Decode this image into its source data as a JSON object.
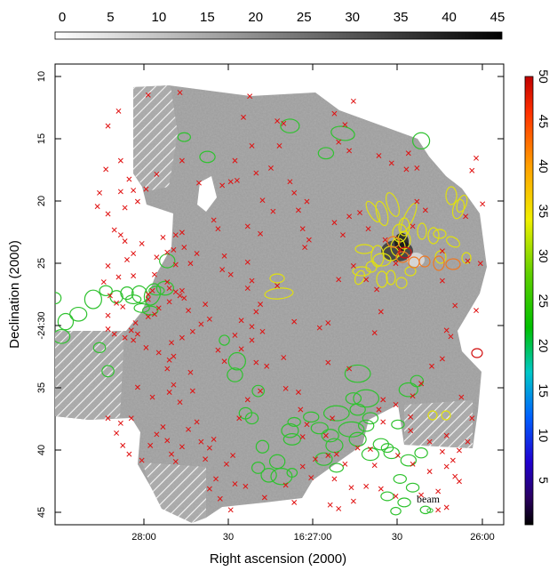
{
  "chart_data": {
    "type": "scatter",
    "xlabel": "Right ascension (2000)",
    "ylabel": "Declination (2000)",
    "x_ticks": [
      "28:00",
      "30",
      "16:27:00",
      "30",
      "26:00"
    ],
    "y_ticks": [
      "10",
      "15",
      "20",
      "25",
      "-24:30",
      "35",
      "40",
      "45"
    ],
    "top_colorbar": {
      "ticks": [
        "0",
        "5",
        "10",
        "15",
        "20",
        "25",
        "30",
        "35",
        "40",
        "45"
      ],
      "range": [
        0,
        45
      ],
      "colormap": "grayscale"
    },
    "right_colorbar": {
      "ticks": [
        "5",
        "10",
        "15",
        "20",
        "25",
        "30",
        "35",
        "40",
        "45",
        "50"
      ],
      "range": [
        0,
        50
      ],
      "colormap": "rainbow"
    },
    "beam_label": "beam",
    "colors": {
      "cross": "#e01010",
      "ellipse_green": "#2fc22f",
      "ellipse_yellow": "#e0e010",
      "ellipse_orange": "#f07820",
      "ellipse_red": "#d21010",
      "map_gray": "#9a9a9a"
    },
    "cross_markers": [
      [
        27.85,
        11.6
      ],
      [
        27.1,
        11.8
      ],
      [
        26.4,
        13.1
      ],
      [
        26.15,
        14.3
      ],
      [
        27.9,
        17.1
      ],
      [
        28.3,
        18.9
      ],
      [
        27.3,
        18.2
      ],
      [
        26.75,
        19.5
      ],
      [
        27.05,
        19.4
      ],
      [
        26.65,
        18.6
      ],
      [
        26.85,
        20.4
      ],
      [
        26.45,
        17.1
      ],
      [
        26.1,
        17.8
      ],
      [
        26.45,
        19.6
      ],
      [
        26.55,
        20.9
      ],
      [
        25.9,
        20.8
      ],
      [
        25.95,
        19.7
      ],
      [
        26.15,
        21.4
      ],
      [
        26.3,
        22.7
      ],
      [
        26.45,
        23.1
      ],
      [
        26.55,
        23.6
      ],
      [
        28.65,
        21.9
      ],
      [
        28.75,
        22.6
      ],
      [
        28.25,
        24.6
      ],
      [
        28.1,
        25.4
      ],
      [
        27.95,
        24.1
      ],
      [
        27.9,
        22.9
      ],
      [
        27.75,
        23.1
      ],
      [
        27.7,
        24.3
      ],
      [
        27.75,
        25.5
      ],
      [
        27.55,
        24.5
      ],
      [
        27.45,
        23.3
      ],
      [
        27.3,
        24.9
      ],
      [
        27.25,
        26.3
      ],
      [
        26.95,
        23.8
      ],
      [
        26.75,
        24.6
      ],
      [
        26.6,
        25.1
      ],
      [
        26.75,
        26.4
      ],
      [
        26.15,
        25.6
      ],
      [
        26.4,
        26.5
      ],
      [
        26.05,
        26.9
      ],
      [
        26.2,
        28.0
      ],
      [
        26.35,
        28.6
      ],
      [
        26.15,
        29.6
      ],
      [
        26.15,
        30.7
      ],
      [
        26.3,
        31.1
      ],
      [
        26.5,
        28.9
      ],
      [
        27.1,
        27.9
      ],
      [
        27.1,
        28.3
      ],
      [
        27.2,
        27.6
      ],
      [
        27.55,
        26.9
      ],
      [
        27.6,
        27.4
      ],
      [
        27.75,
        27.7
      ],
      [
        27.9,
        27.6
      ],
      [
        27.85,
        28.0
      ],
      [
        27.95,
        28.2
      ],
      [
        27.6,
        28.5
      ],
      [
        27.35,
        29.0
      ],
      [
        27.25,
        29.5
      ],
      [
        27.1,
        29.7
      ],
      [
        26.8,
        30.2
      ],
      [
        26.7,
        30.8
      ],
      [
        26.85,
        31.1
      ],
      [
        26.75,
        31.6
      ],
      [
        26.55,
        31.4
      ],
      [
        27.05,
        32.2
      ],
      [
        27.35,
        32.6
      ],
      [
        27.6,
        33.2
      ],
      [
        27.65,
        31.8
      ],
      [
        27.7,
        32.9
      ],
      [
        27.55,
        33.9
      ],
      [
        27.9,
        31.4
      ],
      [
        28.15,
        30.9
      ],
      [
        28.05,
        29.2
      ],
      [
        28.35,
        30.3
      ],
      [
        28.45,
        28.7
      ],
      [
        28.55,
        29.9
      ],
      [
        28.75,
        32.4
      ],
      [
        28.9,
        33.3
      ],
      [
        28.1,
        34.2
      ],
      [
        28.15,
        35.7
      ],
      [
        27.7,
        35.2
      ],
      [
        27.6,
        35.8
      ],
      [
        27.85,
        36.6
      ],
      [
        27.2,
        36.2
      ],
      [
        26.85,
        35.4
      ],
      [
        26.7,
        37.9
      ],
      [
        26.45,
        38.3
      ],
      [
        26.15,
        37.9
      ],
      [
        26.35,
        39.1
      ],
      [
        26.5,
        40.1
      ],
      [
        26.65,
        40.8
      ],
      [
        26.95,
        41.3
      ],
      [
        27.3,
        39.2
      ],
      [
        27.15,
        40.1
      ],
      [
        27.45,
        38.6
      ],
      [
        27.55,
        39.7
      ],
      [
        27.65,
        40.8
      ],
      [
        27.75,
        41.4
      ],
      [
        27.9,
        40.2
      ],
      [
        28.05,
        38.8
      ],
      [
        28.25,
        38.2
      ],
      [
        28.35,
        39.8
      ],
      [
        28.45,
        41.2
      ],
      [
        28.55,
        40.3
      ],
      [
        28.65,
        39.6
      ],
      [
        28.55,
        43.6
      ],
      [
        28.7,
        42.8
      ],
      [
        28.8,
        44.4
      ],
      [
        28.95,
        41.6
      ],
      [
        29.1,
        40.9
      ],
      [
        29.15,
        43.2
      ],
      [
        29.05,
        45.3
      ],
      [
        29.4,
        43.4
      ],
      [
        29.85,
        44.3
      ],
      [
        29.25,
        37.9
      ],
      [
        29.45,
        36.4
      ],
      [
        29.75,
        35.7
      ],
      [
        29.9,
        33.7
      ],
      [
        29.65,
        33.4
      ],
      [
        29.3,
        32.3
      ],
      [
        29.55,
        31.6
      ],
      [
        29.8,
        30.9
      ],
      [
        29.15,
        31.2
      ],
      [
        29.3,
        30.0
      ],
      [
        29.55,
        30.5
      ],
      [
        29.65,
        29.3
      ],
      [
        29.45,
        27.4
      ],
      [
        29.05,
        26.3
      ],
      [
        28.85,
        25.9
      ],
      [
        28.9,
        24.8
      ],
      [
        29.45,
        25.3
      ],
      [
        29.55,
        26.8
      ],
      [
        29.75,
        28.7
      ],
      [
        30.15,
        27.2
      ],
      [
        30.3,
        33.0
      ],
      [
        30.55,
        30.1
      ],
      [
        30.7,
        37.2
      ],
      [
        30.75,
        39.4
      ],
      [
        30.85,
        38.4
      ],
      [
        30.65,
        35.8
      ],
      [
        30.35,
        35.5
      ],
      [
        31.45,
        37.9
      ],
      [
        31.3,
        39.3
      ],
      [
        31.35,
        40.9
      ],
      [
        31.5,
        42.8
      ],
      [
        31.05,
        41.2
      ],
      [
        30.75,
        41.8
      ],
      [
        30.95,
        42.7
      ],
      [
        31.4,
        44.9
      ],
      [
        31.9,
        43.5
      ],
      [
        31.75,
        41.6
      ],
      [
        32.45,
        41.7
      ],
      [
        32.35,
        40.4
      ],
      [
        31.15,
        30.6
      ],
      [
        31.35,
        33.4
      ],
      [
        31.35,
        30.2
      ],
      [
        30.55,
        44.7
      ],
      [
        30.35,
        43.3
      ],
      [
        32.55,
        37.2
      ],
      [
        32.65,
        36.4
      ],
      [
        32.65,
        38.2
      ],
      [
        32.95,
        36.8
      ],
      [
        32.95,
        25.4
      ],
      [
        32.7,
        23.5
      ],
      [
        32.45,
        31.0
      ],
      [
        31.85,
        33.9
      ],
      [
        32.6,
        29.3
      ],
      [
        32.5,
        27.5
      ],
      [
        32.25,
        26.7
      ],
      [
        31.95,
        25.6
      ],
      [
        31.6,
        26.7
      ],
      [
        31.5,
        22.1
      ],
      [
        31.85,
        21.6
      ],
      [
        32.3,
        22.6
      ],
      [
        32.1,
        21.3
      ],
      [
        31.7,
        23.1
      ],
      [
        30.8,
        24.1
      ],
      [
        30.9,
        23.5
      ],
      [
        30.75,
        22.6
      ],
      [
        30.65,
        21.1
      ],
      [
        30.85,
        20.4
      ],
      [
        30.55,
        19.7
      ],
      [
        30.45,
        18.8
      ],
      [
        30.05,
        21.2
      ],
      [
        29.45,
        22.4
      ],
      [
        29.75,
        23.0
      ],
      [
        28.85,
        19.1
      ],
      [
        29.5,
        11.9
      ],
      [
        29.35,
        13.6
      ],
      [
        29.55,
        15.9
      ],
      [
        29.15,
        17.1
      ],
      [
        29.05,
        18.8
      ],
      [
        29.65,
        18.1
      ],
      [
        29.2,
        18.7
      ],
      [
        29.8,
        20.3
      ],
      [
        30.0,
        17.7
      ],
      [
        30.2,
        15.9
      ],
      [
        30.3,
        14.1
      ],
      [
        30.15,
        13.9
      ],
      [
        31.95,
        12.3
      ],
      [
        31.5,
        13.3
      ],
      [
        31.75,
        14.2
      ],
      [
        31.6,
        15.6
      ],
      [
        31.85,
        16.3
      ],
      [
        32.55,
        16.7
      ],
      [
        32.85,
        17.3
      ],
      [
        33.25,
        16.5
      ],
      [
        33.2,
        17.8
      ],
      [
        33.45,
        17.7
      ],
      [
        33.35,
        22.4
      ],
      [
        33.05,
        24.3
      ],
      [
        33.45,
        20.4
      ],
      [
        33.65,
        21.1
      ],
      [
        34.85,
        16.9
      ],
      [
        34.75,
        17.9
      ],
      [
        35.0,
        20.6
      ],
      [
        34.6,
        21.6
      ],
      [
        34.05,
        24.4
      ],
      [
        34.65,
        25.2
      ],
      [
        34.95,
        25.4
      ],
      [
        34.05,
        26.8
      ],
      [
        34.85,
        29.2
      ],
      [
        34.35,
        28.8
      ],
      [
        34.15,
        30.8
      ],
      [
        34.25,
        31.3
      ],
      [
        34.05,
        33.1
      ],
      [
        33.8,
        33.7
      ],
      [
        33.55,
        35.1
      ],
      [
        33.35,
        36.1
      ],
      [
        33.3,
        37.8
      ],
      [
        33.3,
        38.9
      ],
      [
        34.5,
        36.2
      ],
      [
        34.75,
        37.9
      ],
      [
        34.65,
        39.8
      ],
      [
        34.45,
        40.5
      ],
      [
        34.15,
        41.8
      ],
      [
        34.35,
        42.6
      ],
      [
        34.45,
        43.0
      ],
      [
        34.3,
        41.3
      ],
      [
        34.05,
        40.6
      ],
      [
        34.15,
        39.3
      ],
      [
        33.75,
        39.8
      ],
      [
        33.75,
        42.2
      ],
      [
        33.95,
        43.8
      ],
      [
        33.95,
        45.3
      ],
      [
        34.15,
        45.1
      ],
      [
        33.55,
        44.1
      ],
      [
        32.95,
        44.2
      ],
      [
        32.6,
        43.6
      ],
      [
        32.25,
        43.4
      ],
      [
        31.95,
        44.6
      ],
      [
        31.6,
        45.2
      ],
      [
        32.05,
        40.3
      ],
      [
        31.55,
        40.8
      ],
      [
        33.0,
        40.9
      ],
      [
        33.35,
        41.6
      ]
    ],
    "green_ellipses": [
      [
        31.7,
        14.9,
        0.28,
        0.55,
        10
      ],
      [
        31.3,
        16.5,
        0.18,
        0.45,
        0
      ],
      [
        30.45,
        14.3,
        0.22,
        0.55,
        0
      ],
      [
        33.55,
        15.5,
        0.2,
        0.65,
        0
      ],
      [
        28.5,
        16.8,
        0.18,
        0.45,
        0
      ],
      [
        27.95,
        15.2,
        0.15,
        0.35,
        0
      ],
      [
        27.55,
        25.2,
        0.18,
        0.55,
        0
      ],
      [
        27.2,
        27.9,
        0.18,
        0.9,
        20
      ],
      [
        27.5,
        27.4,
        0.2,
        0.55,
        0
      ],
      [
        26.9,
        27.9,
        0.18,
        0.7,
        -20
      ],
      [
        26.6,
        27.8,
        0.15,
        0.5,
        0
      ],
      [
        26.35,
        28.1,
        0.15,
        0.5,
        0
      ],
      [
        26.1,
        27.6,
        0.15,
        0.4,
        0
      ],
      [
        25.8,
        28.3,
        0.2,
        0.75,
        0
      ],
      [
        25.45,
        29.5,
        0.2,
        0.55,
        0
      ],
      [
        25.15,
        30.1,
        0.18,
        0.65,
        0
      ],
      [
        25.05,
        31.3,
        0.2,
        0.55,
        0
      ],
      [
        24.9,
        28.2,
        0.14,
        0.45,
        0
      ],
      [
        28.9,
        31.6,
        0.12,
        0.4,
        0
      ],
      [
        29.2,
        33.3,
        0.2,
        0.7,
        0
      ],
      [
        29.15,
        34.4,
        0.18,
        0.55,
        0
      ],
      [
        29.7,
        35.7,
        0.14,
        0.45,
        0
      ],
      [
        29.4,
        37.5,
        0.15,
        0.45,
        0
      ],
      [
        29.55,
        37.9,
        0.15,
        0.45,
        0
      ],
      [
        29.8,
        40.2,
        0.15,
        0.5,
        0
      ],
      [
        29.7,
        41.9,
        0.15,
        0.45,
        0
      ],
      [
        29.95,
        42.5,
        0.18,
        0.55,
        0
      ],
      [
        30.15,
        41.4,
        0.18,
        0.55,
        0
      ],
      [
        30.25,
        42.6,
        0.25,
        0.65,
        0
      ],
      [
        30.5,
        42.3,
        0.12,
        0.35,
        0
      ],
      [
        27.3,
        27.6,
        0.18,
        0.35,
        0
      ],
      [
        26.75,
        28.3,
        0.18,
        0.35,
        0
      ],
      [
        26.95,
        29.0,
        0.18,
        0.35,
        0
      ],
      [
        27.15,
        29.2,
        0.18,
        0.35,
        0
      ],
      [
        26.15,
        34.1,
        0.14,
        0.45,
        0
      ],
      [
        25.95,
        32.2,
        0.14,
        0.4,
        0
      ],
      [
        32.05,
        34.3,
        0.3,
        0.7,
        0
      ],
      [
        32.25,
        36.3,
        0.3,
        0.7,
        0
      ],
      [
        32.35,
        37.9,
        0.18,
        0.45,
        0
      ],
      [
        32.05,
        39.6,
        0.2,
        0.55,
        0
      ],
      [
        32.35,
        40.8,
        0.2,
        0.5,
        0
      ],
      [
        32.75,
        40.3,
        0.14,
        0.35,
        0
      ],
      [
        31.5,
        40.1,
        0.2,
        0.55,
        0
      ],
      [
        31.25,
        41.2,
        0.2,
        0.5,
        0
      ],
      [
        31.55,
        41.9,
        0.16,
        0.35,
        0
      ],
      [
        30.45,
        38.9,
        0.2,
        0.55,
        0
      ],
      [
        30.5,
        39.6,
        0.2,
        0.45,
        0
      ],
      [
        30.95,
        37.8,
        0.18,
        0.4,
        0
      ],
      [
        31.15,
        38.7,
        0.2,
        0.45,
        0
      ],
      [
        33.0,
        38.4,
        0.15,
        0.35,
        0
      ],
      [
        33.25,
        35.6,
        0.22,
        0.55,
        0
      ],
      [
        33.45,
        34.9,
        0.15,
        0.45,
        0
      ],
      [
        31.55,
        37.5,
        0.3,
        0.6,
        0
      ],
      [
        30.55,
        38.2,
        0.15,
        0.35,
        0
      ],
      [
        31.4,
        39.3,
        0.2,
        0.5,
        0
      ],
      [
        31.9,
        38.8,
        0.3,
        0.6,
        0
      ],
      [
        31.95,
        36.3,
        0.18,
        0.45,
        0
      ],
      [
        32.05,
        37.2,
        0.18,
        0.45,
        0
      ],
      [
        32.25,
        38.5,
        0.18,
        0.45,
        0
      ],
      [
        32.6,
        40.0,
        0.18,
        0.45,
        0
      ],
      [
        32.85,
        40.7,
        0.18,
        0.45,
        0
      ],
      [
        33.25,
        41.3,
        0.18,
        0.45,
        0
      ],
      [
        33.55,
        40.7,
        0.15,
        0.4,
        0
      ],
      [
        32.75,
        44.2,
        0.15,
        0.35,
        0
      ],
      [
        33.05,
        42.8,
        0.15,
        0.35,
        0
      ],
      [
        33.35,
        43.5,
        0.15,
        0.35,
        0
      ],
      [
        33.15,
        44.7,
        0.15,
        0.35,
        0
      ],
      [
        32.95,
        45.4,
        0.12,
        0.3,
        0
      ],
      [
        33.65,
        45.3,
        0.12,
        0.3,
        0
      ]
    ]
  }
}
